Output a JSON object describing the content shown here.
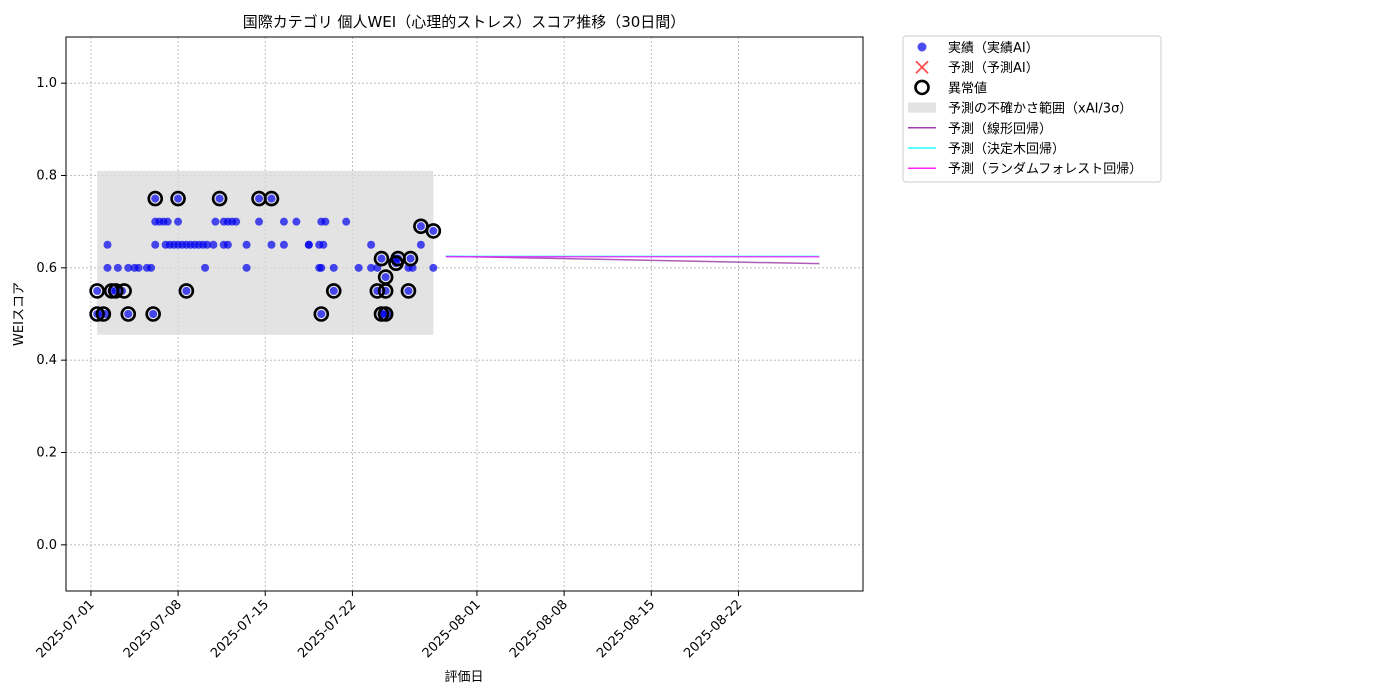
{
  "chart_data": {
    "type": "scatter",
    "title": "国際カテゴリ 個人WEI（心理的ストレス）スコア推移（30日間）",
    "xlabel": "評価日",
    "ylabel": "WEIスコア",
    "xlim": [
      "2025-06-29",
      "2025-09-01"
    ],
    "ylim": [
      -0.1,
      1.1
    ],
    "xticks": [
      "2025-07-01",
      "2025-07-08",
      "2025-07-15",
      "2025-07-22",
      "2025-08-01",
      "2025-08-08",
      "2025-08-15",
      "2025-08-22"
    ],
    "yticks": [
      0.0,
      0.2,
      0.4,
      0.6,
      0.8,
      1.0
    ],
    "grid": true,
    "legend_position": "outside-top-right",
    "series": [
      {
        "name": "実績（実績AI）",
        "kind": "scatter",
        "color": "#0000ee",
        "points": [
          [
            "2025-07-01 12:00",
            0.5
          ],
          [
            "2025-07-01 12:00",
            0.55
          ],
          [
            "2025-07-01 20:00",
            0.5
          ],
          [
            "2025-07-02 04:00",
            0.5
          ],
          [
            "2025-07-02 08:00",
            0.6
          ],
          [
            "2025-07-02 08:00",
            0.65
          ],
          [
            "2025-07-02 16:00",
            0.55
          ],
          [
            "2025-07-03 00:00",
            0.55
          ],
          [
            "2025-07-03 04:00",
            0.6
          ],
          [
            "2025-07-03 12:00",
            0.55
          ],
          [
            "2025-07-04 00:00",
            0.6
          ],
          [
            "2025-07-04 00:00",
            0.5
          ],
          [
            "2025-07-04 12:00",
            0.6
          ],
          [
            "2025-07-04 20:00",
            0.6
          ],
          [
            "2025-07-05 12:00",
            0.6
          ],
          [
            "2025-07-05 20:00",
            0.6
          ],
          [
            "2025-07-06 00:00",
            0.5
          ],
          [
            "2025-07-06 04:00",
            0.65
          ],
          [
            "2025-07-06 04:00",
            0.7
          ],
          [
            "2025-07-06 04:00",
            0.75
          ],
          [
            "2025-07-06 12:00",
            0.7
          ],
          [
            "2025-07-06 20:00",
            0.7
          ],
          [
            "2025-07-07 00:00",
            0.65
          ],
          [
            "2025-07-07 04:00",
            0.7
          ],
          [
            "2025-07-07 08:00",
            0.65
          ],
          [
            "2025-07-07 16:00",
            0.65
          ],
          [
            "2025-07-08 00:00",
            0.65
          ],
          [
            "2025-07-08 00:00",
            0.75
          ],
          [
            "2025-07-08 00:00",
            0.7
          ],
          [
            "2025-07-08 08:00",
            0.65
          ],
          [
            "2025-07-08 16:00",
            0.55
          ],
          [
            "2025-07-08 16:00",
            0.65
          ],
          [
            "2025-07-09 00:00",
            0.65
          ],
          [
            "2025-07-09 08:00",
            0.65
          ],
          [
            "2025-07-09 16:00",
            0.65
          ],
          [
            "2025-07-10 00:00",
            0.65
          ],
          [
            "2025-07-10 04:00",
            0.6
          ],
          [
            "2025-07-10 08:00",
            0.65
          ],
          [
            "2025-07-10 20:00",
            0.65
          ],
          [
            "2025-07-11 00:00",
            0.7
          ],
          [
            "2025-07-11 08:00",
            0.75
          ],
          [
            "2025-07-11 16:00",
            0.7
          ],
          [
            "2025-07-11 16:00",
            0.65
          ],
          [
            "2025-07-12 00:00",
            0.65
          ],
          [
            "2025-07-12 00:00",
            0.7
          ],
          [
            "2025-07-12 08:00",
            0.7
          ],
          [
            "2025-07-12 16:00",
            0.7
          ],
          [
            "2025-07-13 12:00",
            0.65
          ],
          [
            "2025-07-13 12:00",
            0.6
          ],
          [
            "2025-07-14 12:00",
            0.75
          ],
          [
            "2025-07-14 12:00",
            0.7
          ],
          [
            "2025-07-15 12:00",
            0.75
          ],
          [
            "2025-07-15 12:00",
            0.65
          ],
          [
            "2025-07-16 12:00",
            0.7
          ],
          [
            "2025-07-16 12:00",
            0.65
          ],
          [
            "2025-07-17 12:00",
            0.7
          ],
          [
            "2025-07-18 12:00",
            0.65
          ],
          [
            "2025-07-18 12:00",
            0.65
          ],
          [
            "2025-07-19 08:00",
            0.65
          ],
          [
            "2025-07-19 08:00",
            0.6
          ],
          [
            "2025-07-19 12:00",
            0.7
          ],
          [
            "2025-07-19 12:00",
            0.6
          ],
          [
            "2025-07-19 12:00",
            0.5
          ],
          [
            "2025-07-19 16:00",
            0.65
          ],
          [
            "2025-07-19 20:00",
            0.7
          ],
          [
            "2025-07-20 12:00",
            0.55
          ],
          [
            "2025-07-20 12:00",
            0.6
          ],
          [
            "2025-07-21 12:00",
            0.7
          ],
          [
            "2025-07-22 12:00",
            0.6
          ],
          [
            "2025-07-23 12:00",
            0.65
          ],
          [
            "2025-07-23 12:00",
            0.6
          ],
          [
            "2025-07-24 00:00",
            0.55
          ],
          [
            "2025-07-24 00:00",
            0.6
          ],
          [
            "2025-07-24 08:00",
            0.5
          ],
          [
            "2025-07-24 08:00",
            0.62
          ],
          [
            "2025-07-24 12:00",
            0.5
          ],
          [
            "2025-07-24 16:00",
            0.55
          ],
          [
            "2025-07-24 16:00",
            0.58
          ],
          [
            "2025-07-24 20:00",
            0.5
          ],
          [
            "2025-07-25 12:00",
            0.61
          ],
          [
            "2025-07-25 12:00",
            0.62
          ],
          [
            "2025-07-25 16:00",
            0.62
          ],
          [
            "2025-07-26 12:00",
            0.6
          ],
          [
            "2025-07-26 12:00",
            0.55
          ],
          [
            "2025-07-26 16:00",
            0.62
          ],
          [
            "2025-07-26 20:00",
            0.6
          ],
          [
            "2025-07-27 12:00",
            0.69
          ],
          [
            "2025-07-27 12:00",
            0.65
          ],
          [
            "2025-07-28 12:00",
            0.68
          ],
          [
            "2025-07-28 12:00",
            0.6
          ]
        ]
      },
      {
        "name": "予測（予測AI）",
        "kind": "scatter-x",
        "color": "#ff4d4d",
        "points": []
      },
      {
        "name": "異常値",
        "kind": "ring",
        "color": "#000000",
        "points": [
          [
            "2025-07-01 12:00",
            0.5
          ],
          [
            "2025-07-01 12:00",
            0.55
          ],
          [
            "2025-07-02 00:00",
            0.5
          ],
          [
            "2025-07-02 16:00",
            0.55
          ],
          [
            "2025-07-03 00:00",
            0.55
          ],
          [
            "2025-07-03 16:00",
            0.55
          ],
          [
            "2025-07-04 00:00",
            0.5
          ],
          [
            "2025-07-06 00:00",
            0.5
          ],
          [
            "2025-07-06 04:00",
            0.75
          ],
          [
            "2025-07-08 00:00",
            0.75
          ],
          [
            "2025-07-08 16:00",
            0.55
          ],
          [
            "2025-07-11 08:00",
            0.75
          ],
          [
            "2025-07-14 12:00",
            0.75
          ],
          [
            "2025-07-15 12:00",
            0.75
          ],
          [
            "2025-07-19 12:00",
            0.5
          ],
          [
            "2025-07-20 12:00",
            0.55
          ],
          [
            "2025-07-24 00:00",
            0.55
          ],
          [
            "2025-07-24 08:00",
            0.62
          ],
          [
            "2025-07-24 08:00",
            0.5
          ],
          [
            "2025-07-24 16:00",
            0.58
          ],
          [
            "2025-07-24 16:00",
            0.55
          ],
          [
            "2025-07-24 16:00",
            0.5
          ],
          [
            "2025-07-25 12:00",
            0.61
          ],
          [
            "2025-07-25 16:00",
            0.62
          ],
          [
            "2025-07-26 12:00",
            0.55
          ],
          [
            "2025-07-26 16:00",
            0.62
          ],
          [
            "2025-07-27 12:00",
            0.69
          ],
          [
            "2025-07-28 12:00",
            0.68
          ]
        ]
      },
      {
        "name": "予測の不確かさ範囲（xAI/3σ）",
        "kind": "band",
        "color": "#d9d9d9",
        "x": [
          "2025-07-01 12:00",
          "2025-07-28 12:00"
        ],
        "y_low": 0.455,
        "y_high": 0.81
      },
      {
        "name": "予測（線形回帰）",
        "kind": "line",
        "color": "#8b1a9b",
        "x": [
          "2025-07-29 12:00",
          "2025-08-28 12:00"
        ],
        "y": [
          0.625,
          0.609
        ]
      },
      {
        "name": "予測（決定木回帰）",
        "kind": "line",
        "color": "#00ffff",
        "x": [
          "2025-07-29 12:00",
          "2025-08-28 12:00"
        ],
        "y": [
          0.625,
          0.625
        ]
      },
      {
        "name": "予測（ランダムフォレスト回帰）",
        "kind": "line",
        "color": "#ff00ff",
        "x": [
          "2025-07-29 12:00",
          "2025-08-28 12:00"
        ],
        "y": [
          0.624,
          0.624
        ]
      }
    ]
  }
}
